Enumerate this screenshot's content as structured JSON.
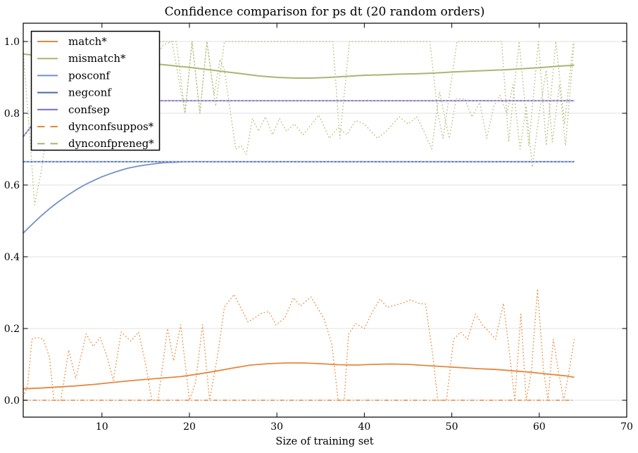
{
  "chart_data": {
    "type": "line",
    "title": "Confidence comparison for ps dt (20 random orders)",
    "xlabel": "Size of training set",
    "ylabel": "",
    "xlim": [
      1,
      70
    ],
    "ylim": [
      -0.047,
      1.051
    ],
    "xticks": [
      10,
      20,
      30,
      40,
      50,
      60,
      70
    ],
    "yticks": [
      0.0,
      0.2,
      0.4,
      0.6,
      0.8,
      1.0
    ],
    "ytick_labels": [
      "0.0",
      "0.2",
      "0.4",
      "0.6",
      "0.8",
      "1.0"
    ],
    "grid": "horizontal-only",
    "grid_color": "#e0e0e0",
    "spine_color": "#000000",
    "legend_position": "upper left",
    "legend": [
      {
        "label": "match*",
        "color": "#e5873e",
        "dash": "solid"
      },
      {
        "label": "mismatch*",
        "color": "#a9b671",
        "dash": "solid"
      },
      {
        "label": "posconf",
        "color": "#7191c6",
        "dash": "solid"
      },
      {
        "label": "negconf",
        "color": "#4a67b2",
        "dash": "solid"
      },
      {
        "label": "confsep",
        "color": "#7e6bba",
        "dash": "solid"
      },
      {
        "label": "dynconfsuppos*",
        "color": "#e5873e",
        "dash": "dashed"
      },
      {
        "label": "dynconfpreneg*",
        "color": "#a9b671",
        "dash": "dashed"
      }
    ],
    "series": [
      {
        "id": "dynconfsuppos-mean",
        "legend_label": "dynconfsuppos*",
        "color": "#e5873e",
        "style": "dashdot",
        "width": 1.5,
        "points": [
          [
            1,
            0.0
          ],
          [
            64,
            0.0
          ]
        ]
      },
      {
        "id": "match-single-order",
        "legend_label": "match*",
        "color": "#ec964e",
        "style": "dotted",
        "width": 1.4,
        "points": [
          [
            1,
            0.01
          ],
          [
            1.5,
            0.04
          ],
          [
            2,
            0.17
          ],
          [
            2.6,
            0.175
          ],
          [
            3.3,
            0.17
          ],
          [
            4,
            0.12
          ],
          [
            4.5,
            0.0
          ],
          [
            5.3,
            0.0
          ],
          [
            6.2,
            0.14
          ],
          [
            7,
            0.06
          ],
          [
            8.2,
            0.185
          ],
          [
            9,
            0.15
          ],
          [
            9.8,
            0.175
          ],
          [
            10.6,
            0.12
          ],
          [
            11.3,
            0.055
          ],
          [
            12.2,
            0.19
          ],
          [
            13.3,
            0.165
          ],
          [
            14.2,
            0.19
          ],
          [
            15,
            0.1
          ],
          [
            15.7,
            0.0
          ],
          [
            16.4,
            0.0
          ],
          [
            17.5,
            0.2
          ],
          [
            18.2,
            0.11
          ],
          [
            19,
            0.21
          ],
          [
            20,
            0.0
          ],
          [
            20.7,
            0.05
          ],
          [
            21.5,
            0.21
          ],
          [
            22.3,
            0.0
          ],
          [
            23.2,
            0.12
          ],
          [
            24,
            0.26
          ],
          [
            25.1,
            0.295
          ],
          [
            26.7,
            0.218
          ],
          [
            28.3,
            0.243
          ],
          [
            29.1,
            0.247
          ],
          [
            29.9,
            0.21
          ],
          [
            30.9,
            0.229
          ],
          [
            31.9,
            0.286
          ],
          [
            32.7,
            0.263
          ],
          [
            33.9,
            0.288
          ],
          [
            35.4,
            0.227
          ],
          [
            36.3,
            0.155
          ],
          [
            37,
            0.0
          ],
          [
            37.7,
            0.0
          ],
          [
            38.2,
            0.184
          ],
          [
            39,
            0.214
          ],
          [
            40,
            0.2
          ],
          [
            41,
            0.25
          ],
          [
            41.8,
            0.282
          ],
          [
            42.6,
            0.259
          ],
          [
            43.5,
            0.265
          ],
          [
            44.5,
            0.272
          ],
          [
            45.3,
            0.28
          ],
          [
            46.2,
            0.27
          ],
          [
            47,
            0.268
          ],
          [
            47.8,
            0.13
          ],
          [
            48.4,
            0.0
          ],
          [
            49.4,
            0.0
          ],
          [
            50.2,
            0.17
          ],
          [
            51,
            0.19
          ],
          [
            51.8,
            0.17
          ],
          [
            52.7,
            0.24
          ],
          [
            53.5,
            0.21
          ],
          [
            54.3,
            0.19
          ],
          [
            55,
            0.17
          ],
          [
            55.9,
            0.27
          ],
          [
            56.6,
            0.13
          ],
          [
            57.2,
            0.0
          ],
          [
            57.9,
            0.24
          ],
          [
            58.5,
            0.0
          ],
          [
            59.1,
            0.08
          ],
          [
            59.8,
            0.31
          ],
          [
            60.5,
            0.08
          ],
          [
            61,
            0.0
          ],
          [
            61.6,
            0.17
          ],
          [
            62.2,
            0.08
          ],
          [
            62.8,
            0.0
          ],
          [
            63.4,
            0.08
          ],
          [
            64,
            0.17
          ]
        ]
      },
      {
        "id": "match-mean",
        "legend_label": "match*",
        "color": "#e5873e",
        "style": "solid",
        "width": 1.8,
        "points": [
          [
            1,
            0.032
          ],
          [
            3,
            0.034
          ],
          [
            5,
            0.037
          ],
          [
            7,
            0.04
          ],
          [
            9,
            0.044
          ],
          [
            11,
            0.049
          ],
          [
            13,
            0.054
          ],
          [
            15,
            0.058
          ],
          [
            17,
            0.062
          ],
          [
            19,
            0.066
          ],
          [
            21,
            0.073
          ],
          [
            23,
            0.081
          ],
          [
            25,
            0.09
          ],
          [
            27,
            0.098
          ],
          [
            29,
            0.102
          ],
          [
            31,
            0.104
          ],
          [
            33,
            0.104
          ],
          [
            35,
            0.102
          ],
          [
            37,
            0.099
          ],
          [
            39,
            0.098
          ],
          [
            41,
            0.1
          ],
          [
            43,
            0.101
          ],
          [
            45,
            0.1
          ],
          [
            47,
            0.097
          ],
          [
            49,
            0.094
          ],
          [
            51,
            0.091
          ],
          [
            53,
            0.088
          ],
          [
            55,
            0.086
          ],
          [
            57,
            0.082
          ],
          [
            59,
            0.078
          ],
          [
            61,
            0.073
          ],
          [
            63,
            0.068
          ],
          [
            64,
            0.064
          ]
        ]
      },
      {
        "id": "dynconfpreneg-run",
        "legend_label": "dynconfpreneg*",
        "color": "#bcc488",
        "style": "dotted",
        "width": 1.4,
        "points": [
          [
            1,
            1.0
          ],
          [
            18.5,
            1.0
          ],
          [
            19.5,
            0.8
          ],
          [
            20.3,
            1.0
          ],
          [
            21.2,
            0.8
          ],
          [
            22,
            1.0
          ],
          [
            23,
            0.82
          ],
          [
            24,
            1.0
          ],
          [
            36.4,
            1.0
          ],
          [
            37.2,
            0.73
          ],
          [
            38.3,
            1.0
          ],
          [
            47.5,
            1.0
          ],
          [
            48.4,
            0.8
          ],
          [
            49,
            0.73
          ],
          [
            50.6,
            1.0
          ],
          [
            55.7,
            1.0
          ],
          [
            56.5,
            0.72
          ],
          [
            57.7,
            1.0
          ],
          [
            58.8,
            0.71
          ],
          [
            59.9,
            1.0
          ],
          [
            60.8,
            0.71
          ],
          [
            61.9,
            1.0
          ],
          [
            62.9,
            0.77
          ],
          [
            63.9,
            1.0
          ]
        ]
      },
      {
        "id": "mismatch-single-order",
        "legend_label": "mismatch*",
        "color": "#bcc488",
        "style": "dotted",
        "width": 1.4,
        "points": [
          [
            1,
            0.97
          ],
          [
            1.8,
            0.72
          ],
          [
            2.3,
            0.545
          ],
          [
            3,
            0.63
          ],
          [
            3.6,
            0.73
          ],
          [
            5,
            0.78
          ],
          [
            6,
            0.74
          ],
          [
            7,
            0.8
          ],
          [
            8,
            0.77
          ],
          [
            9,
            0.83
          ],
          [
            10,
            0.8
          ],
          [
            11,
            0.86
          ],
          [
            12,
            0.83
          ],
          [
            13,
            0.89
          ],
          [
            14,
            0.93
          ],
          [
            15,
            0.9
          ],
          [
            16,
            0.95
          ],
          [
            17,
            0.99
          ],
          [
            18,
            1.0
          ],
          [
            19.5,
            0.8
          ],
          [
            20.3,
            1.0
          ],
          [
            21.2,
            0.8
          ],
          [
            22,
            1.0
          ],
          [
            22.8,
            0.85
          ],
          [
            23.5,
            0.95
          ],
          [
            24,
            0.92
          ],
          [
            25.3,
            0.7
          ],
          [
            25.9,
            0.71
          ],
          [
            26.5,
            0.685
          ],
          [
            27.2,
            0.785
          ],
          [
            27.9,
            0.75
          ],
          [
            28.7,
            0.79
          ],
          [
            29.5,
            0.74
          ],
          [
            30.3,
            0.785
          ],
          [
            31.1,
            0.75
          ],
          [
            32,
            0.77
          ],
          [
            33,
            0.74
          ],
          [
            34,
            0.77
          ],
          [
            34.8,
            0.795
          ],
          [
            36,
            0.73
          ],
          [
            37,
            0.76
          ],
          [
            38,
            0.74
          ],
          [
            39,
            0.78
          ],
          [
            40,
            0.77
          ],
          [
            41.5,
            0.73
          ],
          [
            42.5,
            0.75
          ],
          [
            44,
            0.79
          ],
          [
            45,
            0.77
          ],
          [
            46,
            0.79
          ],
          [
            47,
            0.74
          ],
          [
            47.7,
            0.7
          ],
          [
            48.6,
            0.86
          ],
          [
            49.7,
            0.73
          ],
          [
            50.5,
            0.84
          ],
          [
            51.5,
            0.84
          ],
          [
            52.3,
            0.79
          ],
          [
            53.2,
            0.83
          ],
          [
            54,
            0.73
          ],
          [
            54.8,
            0.82
          ],
          [
            55.5,
            0.85
          ],
          [
            56.3,
            0.8
          ],
          [
            57,
            0.88
          ],
          [
            57.8,
            0.7
          ],
          [
            58.5,
            0.82
          ],
          [
            59.2,
            0.65
          ],
          [
            60,
            0.8
          ],
          [
            60.8,
            0.92
          ],
          [
            61.5,
            0.72
          ],
          [
            62.3,
            0.88
          ],
          [
            63,
            0.71
          ],
          [
            64,
            1.0
          ]
        ]
      },
      {
        "id": "mismatch-mean",
        "legend_label": "mismatch*",
        "color": "#a9b671",
        "style": "solid",
        "width": 2.0,
        "points": [
          [
            1,
            0.965
          ],
          [
            4,
            0.958
          ],
          [
            8,
            0.95
          ],
          [
            12,
            0.944
          ],
          [
            16,
            0.938
          ],
          [
            18,
            0.933
          ],
          [
            20,
            0.928
          ],
          [
            22,
            0.922
          ],
          [
            24,
            0.916
          ],
          [
            26,
            0.91
          ],
          [
            28,
            0.904
          ],
          [
            30,
            0.9
          ],
          [
            32,
            0.898
          ],
          [
            34,
            0.898
          ],
          [
            36,
            0.9
          ],
          [
            38,
            0.903
          ],
          [
            40,
            0.906
          ],
          [
            42,
            0.907
          ],
          [
            44,
            0.909
          ],
          [
            46,
            0.91
          ],
          [
            48,
            0.912
          ],
          [
            50,
            0.915
          ],
          [
            52,
            0.917
          ],
          [
            54,
            0.919
          ],
          [
            56,
            0.921
          ],
          [
            58,
            0.924
          ],
          [
            60,
            0.927
          ],
          [
            62,
            0.931
          ],
          [
            64,
            0.934
          ]
        ]
      },
      {
        "id": "posconf",
        "legend_label": "posconf",
        "color": "#7191c6",
        "style": "solid",
        "width": 1.8,
        "points": [
          [
            1,
            0.466
          ],
          [
            2,
            0.49
          ],
          [
            3,
            0.513
          ],
          [
            4,
            0.534
          ],
          [
            5,
            0.553
          ],
          [
            6,
            0.57
          ],
          [
            7,
            0.586
          ],
          [
            8,
            0.6
          ],
          [
            9,
            0.612
          ],
          [
            10,
            0.623
          ],
          [
            11,
            0.632
          ],
          [
            12,
            0.64
          ],
          [
            13,
            0.647
          ],
          [
            14,
            0.652
          ],
          [
            15,
            0.656
          ],
          [
            16,
            0.659
          ],
          [
            17,
            0.662
          ],
          [
            18,
            0.663
          ],
          [
            19,
            0.664
          ],
          [
            20,
            0.665
          ],
          [
            64,
            0.665
          ]
        ]
      },
      {
        "id": "negconf",
        "legend_label": "negconf",
        "color": "#a9bbe2",
        "style": "solid",
        "width": 2.2,
        "overlay": {
          "color": "#4a67b2",
          "dash": "2.6 2.6",
          "width": 1.5
        },
        "points": [
          [
            1,
            0.665
          ],
          [
            64,
            0.665
          ]
        ]
      },
      {
        "id": "confsep",
        "legend_label": "confsep",
        "color": "#bcaede",
        "style": "solid",
        "width": 2.2,
        "overlay": {
          "color": "#7e6bba",
          "dash": "2.6 2.6",
          "width": 1.5
        },
        "points": [
          [
            1,
            0.735
          ],
          [
            2,
            0.766
          ],
          [
            3,
            0.79
          ],
          [
            4,
            0.807
          ],
          [
            5,
            0.818
          ],
          [
            6,
            0.826
          ],
          [
            7,
            0.831
          ],
          [
            8,
            0.833
          ],
          [
            9,
            0.834
          ],
          [
            10,
            0.835
          ],
          [
            64,
            0.835
          ]
        ]
      }
    ]
  }
}
